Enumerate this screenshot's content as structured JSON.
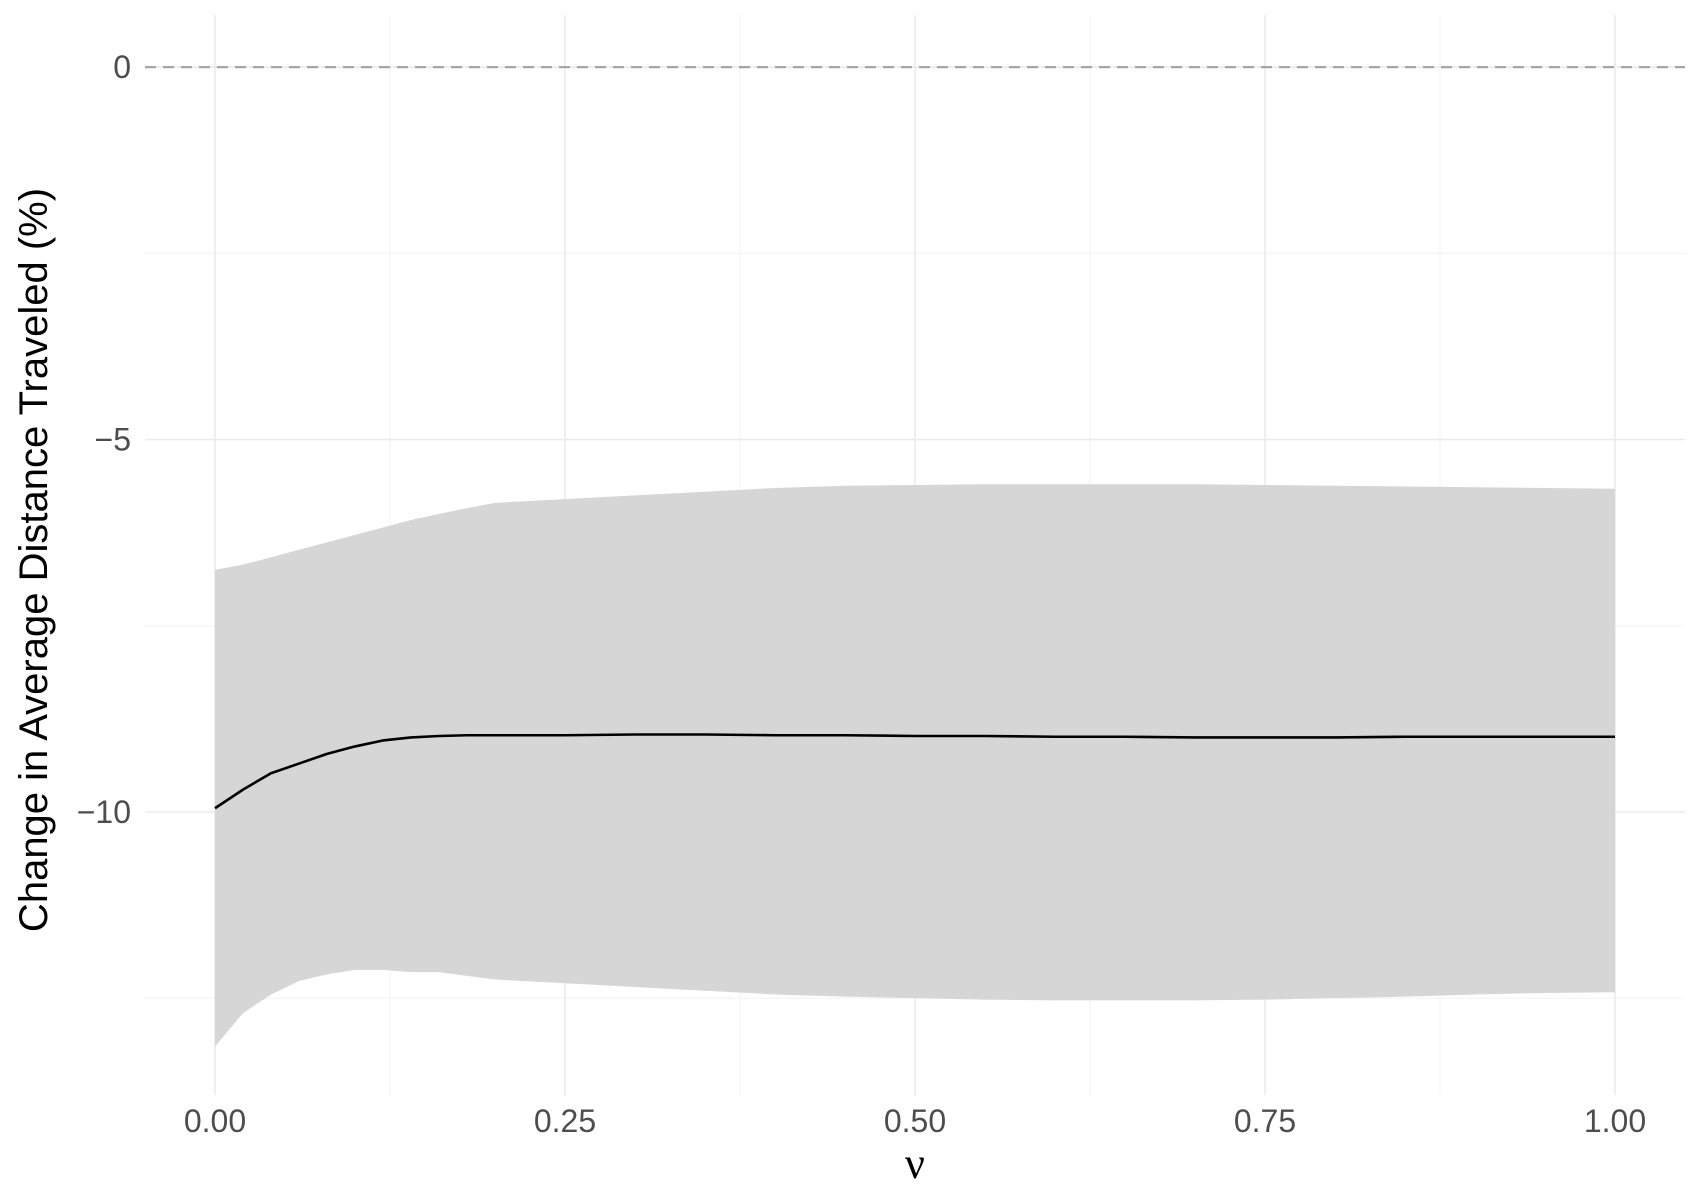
{
  "chart_data": {
    "type": "line",
    "title": "",
    "xlabel": "ν",
    "ylabel": "Change in Average Distance Traveled (%)",
    "xlim": [
      -0.05,
      1.05
    ],
    "ylim": [
      -13.8,
      0.7
    ],
    "x_ticks": [
      0.0,
      0.25,
      0.5,
      0.75,
      1.0
    ],
    "x_tick_labels": [
      "0.00",
      "0.25",
      "0.50",
      "0.75",
      "1.00"
    ],
    "y_ticks": [
      0,
      -5,
      -10
    ],
    "y_tick_labels": [
      "0",
      "−5",
      "−10"
    ],
    "grid": true,
    "reference_line": {
      "y": 0,
      "style": "dashed",
      "color": "#a6a6a6"
    },
    "colors": {
      "line": "#000000",
      "ribbon": "#d4d4d4"
    },
    "x": [
      0.0,
      0.02,
      0.04,
      0.06,
      0.08,
      0.1,
      0.12,
      0.14,
      0.16,
      0.18,
      0.2,
      0.25,
      0.3,
      0.35,
      0.4,
      0.45,
      0.5,
      0.55,
      0.6,
      0.65,
      0.7,
      0.75,
      0.8,
      0.85,
      0.9,
      0.95,
      1.0
    ],
    "series": [
      {
        "values": [
          -9.95,
          -9.7,
          -9.48,
          -9.35,
          -9.22,
          -9.12,
          -9.04,
          -9.0,
          -8.98,
          -8.97,
          -8.97,
          -8.97,
          -8.96,
          -8.96,
          -8.97,
          -8.97,
          -8.98,
          -8.98,
          -8.99,
          -8.99,
          -9.0,
          -9.0,
          -9.0,
          -8.99,
          -8.99,
          -8.99,
          -8.99
        ],
        "lower": [
          -13.15,
          -12.7,
          -12.45,
          -12.27,
          -12.18,
          -12.12,
          -12.12,
          -12.15,
          -12.15,
          -12.2,
          -12.25,
          -12.3,
          -12.35,
          -12.4,
          -12.45,
          -12.48,
          -12.5,
          -12.52,
          -12.53,
          -12.53,
          -12.53,
          -12.52,
          -12.5,
          -12.48,
          -12.45,
          -12.43,
          -12.42
        ],
        "upper": [
          -6.75,
          -6.68,
          -6.58,
          -6.48,
          -6.38,
          -6.28,
          -6.18,
          -6.08,
          -6.0,
          -5.92,
          -5.85,
          -5.8,
          -5.75,
          -5.7,
          -5.65,
          -5.62,
          -5.61,
          -5.6,
          -5.6,
          -5.6,
          -5.6,
          -5.61,
          -5.62,
          -5.63,
          -5.64,
          -5.65,
          -5.66
        ]
      }
    ]
  }
}
